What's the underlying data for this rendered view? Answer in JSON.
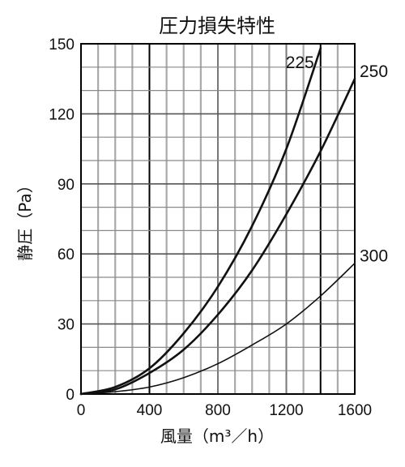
{
  "chart_data": {
    "type": "line",
    "title": "圧力損失特性",
    "xlabel": "風量（m³／h）",
    "ylabel": "静圧（Pa）",
    "xlim": [
      0,
      1600
    ],
    "ylim": [
      0,
      150
    ],
    "x_ticks": [
      0,
      400,
      800,
      1200,
      1600
    ],
    "y_ticks": [
      0,
      30,
      60,
      90,
      120,
      150
    ],
    "x_minor_step": 100,
    "y_minor_step": 10,
    "grid": true,
    "series": [
      {
        "name": "225",
        "label_position": "inside-top",
        "x": [
          0,
          200,
          400,
          600,
          800,
          1000,
          1200,
          1400
        ],
        "y": [
          0,
          3,
          11,
          26,
          46,
          72,
          105,
          148
        ]
      },
      {
        "name": "250",
        "label_position": "right",
        "x": [
          0,
          200,
          400,
          600,
          800,
          1000,
          1200,
          1400,
          1600
        ],
        "y": [
          0,
          2,
          9,
          19,
          34,
          53,
          77,
          104,
          135
        ]
      },
      {
        "name": "300",
        "label_position": "right",
        "x": [
          0,
          200,
          400,
          600,
          800,
          1000,
          1200,
          1400,
          1600
        ],
        "y": [
          0,
          1,
          3,
          7,
          13,
          21,
          30,
          42,
          56
        ]
      }
    ]
  }
}
